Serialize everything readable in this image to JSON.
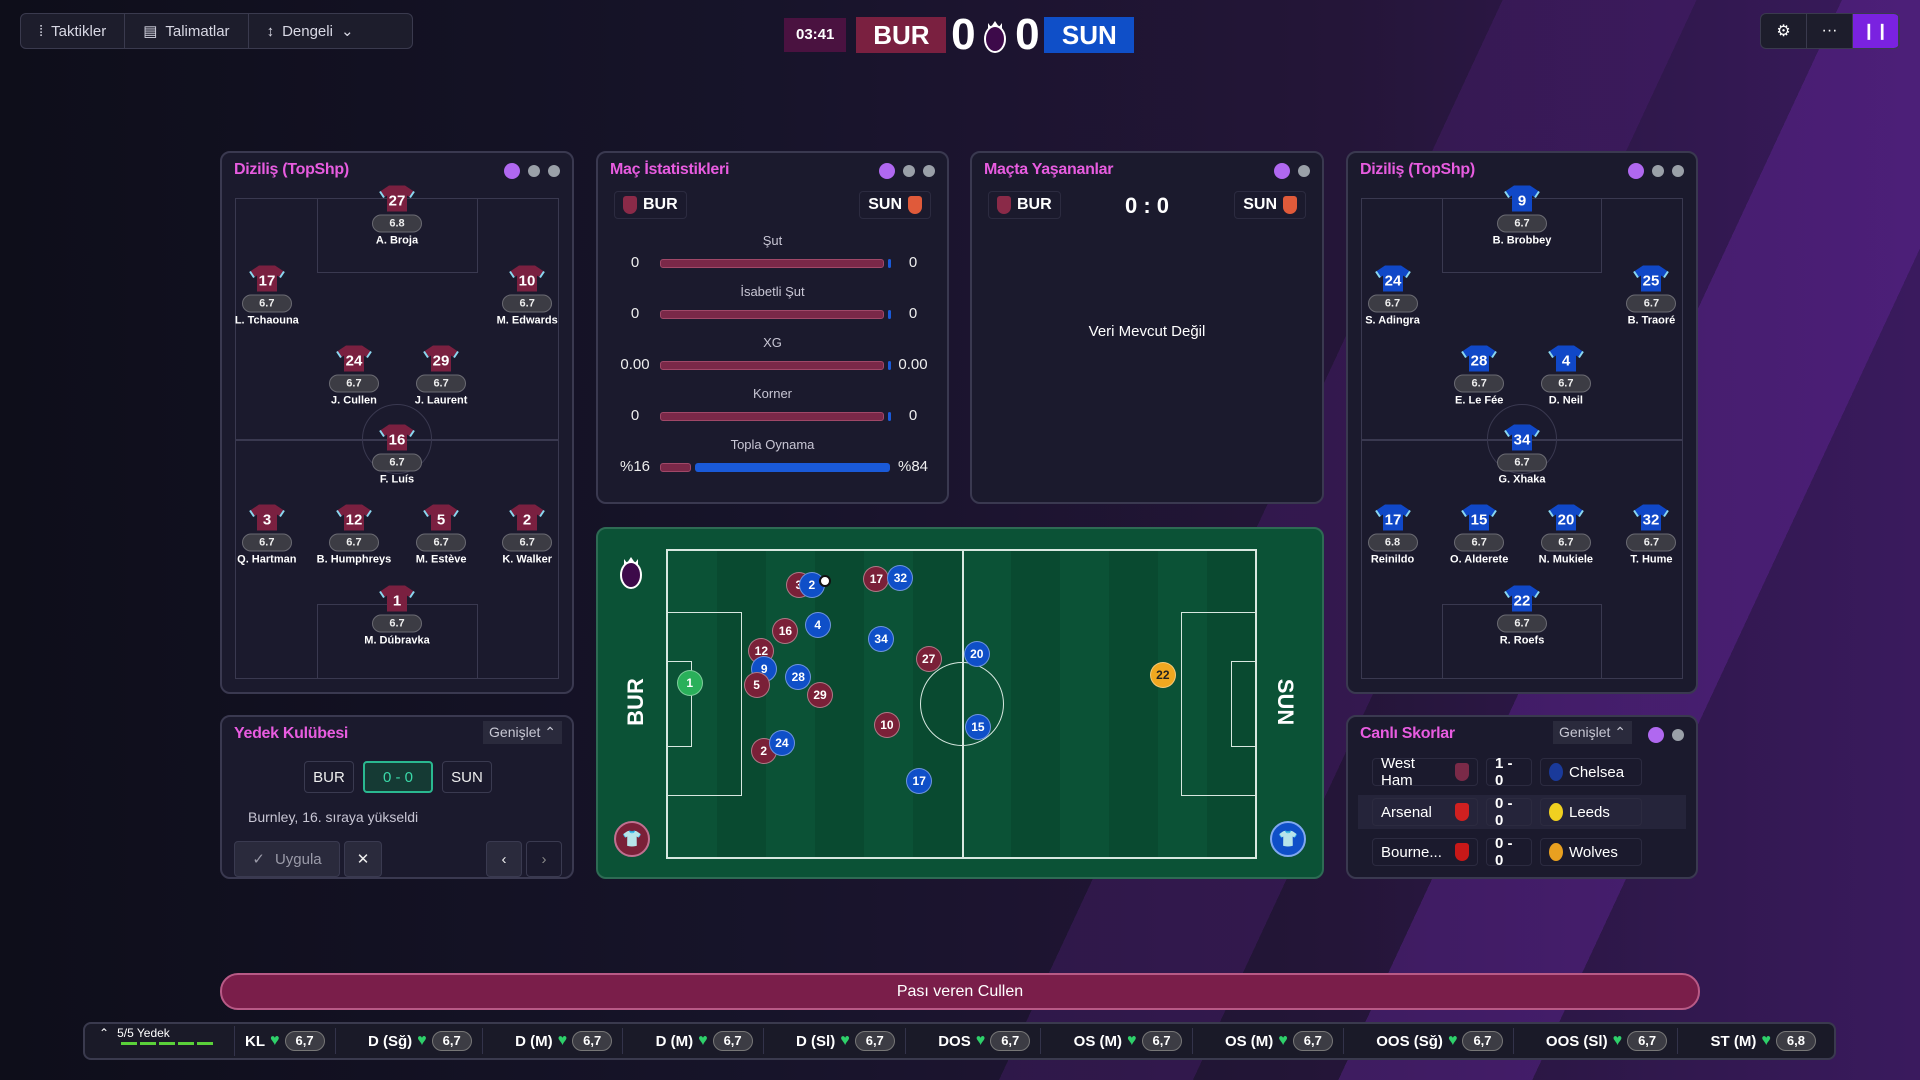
{
  "toolbar": {
    "tactics": "Taktikler",
    "instructions": "Talimatlar",
    "mentality": "Dengeli"
  },
  "scoreboard": {
    "time": "03:41",
    "home": "BUR",
    "away": "SUN",
    "home_score": "0",
    "away_score": "0",
    "home_color": "#7a2040",
    "away_color": "#0f4fc8"
  },
  "top_right": {
    "settings_icon": "gear-icon",
    "more_icon": "ellipsis-icon",
    "pause_icon": "pause-icon"
  },
  "lineup_home": {
    "title": "Diziliş (TopShp)",
    "players": [
      {
        "num": "27",
        "rating": "6.8",
        "name": "A. Broja"
      },
      {
        "num": "17",
        "rating": "6.7",
        "name": "L. Tchaouna"
      },
      {
        "num": "10",
        "rating": "6.7",
        "name": "M. Edwards"
      },
      {
        "num": "24",
        "rating": "6.7",
        "name": "J. Cullen"
      },
      {
        "num": "29",
        "rating": "6.7",
        "name": "J. Laurent"
      },
      {
        "num": "16",
        "rating": "6.7",
        "name": "F. Luís"
      },
      {
        "num": "3",
        "rating": "6.7",
        "name": "Q. Hartman"
      },
      {
        "num": "12",
        "rating": "6.7",
        "name": "B. Humphreys"
      },
      {
        "num": "5",
        "rating": "6.7",
        "name": "M. Estève"
      },
      {
        "num": "2",
        "rating": "6.7",
        "name": "K. Walker"
      },
      {
        "num": "1",
        "rating": "6.7",
        "name": "M. Dúbravka"
      }
    ]
  },
  "lineup_away": {
    "title": "Diziliş (TopShp)",
    "players": [
      {
        "num": "9",
        "rating": "6.7",
        "name": "B. Brobbey"
      },
      {
        "num": "24",
        "rating": "6.7",
        "name": "S. Adingra"
      },
      {
        "num": "25",
        "rating": "6.7",
        "name": "B. Traoré"
      },
      {
        "num": "28",
        "rating": "6.7",
        "name": "E. Le Fée"
      },
      {
        "num": "4",
        "rating": "6.7",
        "name": "D. Neil"
      },
      {
        "num": "34",
        "rating": "6.7",
        "name": "G. Xhaka"
      },
      {
        "num": "17",
        "rating": "6.8",
        "name": "Reinildo"
      },
      {
        "num": "15",
        "rating": "6.7",
        "name": "O. Alderete"
      },
      {
        "num": "20",
        "rating": "6.7",
        "name": "N. Mukiele"
      },
      {
        "num": "32",
        "rating": "6.7",
        "name": "T. Hume"
      },
      {
        "num": "22",
        "rating": "6.7",
        "name": "R. Roefs"
      }
    ]
  },
  "stats": {
    "title": "Maç İstatistikleri",
    "home": "BUR",
    "away": "SUN",
    "rows": [
      {
        "label": "Şut",
        "home": "0",
        "away": "0",
        "home_share": 1
      },
      {
        "label": "İsabetli Şut",
        "home": "0",
        "away": "0",
        "home_share": 1
      },
      {
        "label": "XG",
        "home": "0.00",
        "away": "0.00",
        "home_share": 1
      },
      {
        "label": "Korner",
        "home": "0",
        "away": "0",
        "home_share": 1
      },
      {
        "label": "Topla Oynama",
        "home": "%16",
        "away": "%84",
        "home_share": 0.16
      }
    ]
  },
  "events": {
    "title": "Maçta Yaşananlar",
    "home": "BUR",
    "away": "SUN",
    "score": "0 : 0",
    "empty": "Veri Mevcut Değil"
  },
  "pitch": {
    "home_label": "BUR",
    "away_label": "SUN",
    "tokens": [
      {
        "num": "1",
        "team": "gkb"
      },
      {
        "num": "3",
        "team": "bur"
      },
      {
        "num": "2",
        "team": "sun"
      },
      {
        "num": "17",
        "team": "bur"
      },
      {
        "num": "32",
        "team": "sun"
      },
      {
        "num": "16",
        "team": "bur"
      },
      {
        "num": "4",
        "team": "sun"
      },
      {
        "num": "34",
        "team": "sun"
      },
      {
        "num": "12",
        "team": "bur"
      },
      {
        "num": "9",
        "team": "sun"
      },
      {
        "num": "5",
        "team": "bur"
      },
      {
        "num": "28",
        "team": "sun"
      },
      {
        "num": "29",
        "team": "bur"
      },
      {
        "num": "27",
        "team": "bur"
      },
      {
        "num": "20",
        "team": "sun"
      },
      {
        "num": "10",
        "team": "bur"
      },
      {
        "num": "15",
        "team": "sun"
      },
      {
        "num": "2",
        "team": "bur"
      },
      {
        "num": "24",
        "team": "sun"
      },
      {
        "num": "17",
        "team": "sun"
      },
      {
        "num": "22",
        "team": "gks"
      }
    ]
  },
  "bench": {
    "title": "Yedek Kulübesi",
    "expand": "Genişlet",
    "home": "BUR",
    "score": "0 - 0",
    "away": "SUN",
    "message": "Burnley, 16. sıraya yükseldi",
    "apply": "Uygula"
  },
  "live_scores": {
    "title": "Canlı Skorlar",
    "expand": "Genişlet",
    "matches": [
      {
        "home": "West Ham",
        "score": "1 - 0",
        "away": "Chelsea"
      },
      {
        "home": "Arsenal",
        "score": "0 - 0",
        "away": "Leeds"
      },
      {
        "home": "Bourne...",
        "score": "0 - 0",
        "away": "Wolves"
      }
    ]
  },
  "banner": "Pası veren Cullen",
  "bottom_bar": {
    "subs": "5/5 Yedek",
    "positions": [
      {
        "pos": "KL",
        "rating": "6,7"
      },
      {
        "pos": "D (Sğ)",
        "rating": "6,7"
      },
      {
        "pos": "D (M)",
        "rating": "6,7"
      },
      {
        "pos": "D (M)",
        "rating": "6,7"
      },
      {
        "pos": "D (Sl)",
        "rating": "6,7"
      },
      {
        "pos": "DOS",
        "rating": "6,7"
      },
      {
        "pos": "OS (M)",
        "rating": "6,7"
      },
      {
        "pos": "OS (M)",
        "rating": "6,7"
      },
      {
        "pos": "OOS (Sğ)",
        "rating": "6,7"
      },
      {
        "pos": "OOS (Sl)",
        "rating": "6,7"
      },
      {
        "pos": "ST (M)",
        "rating": "6,8"
      }
    ]
  }
}
